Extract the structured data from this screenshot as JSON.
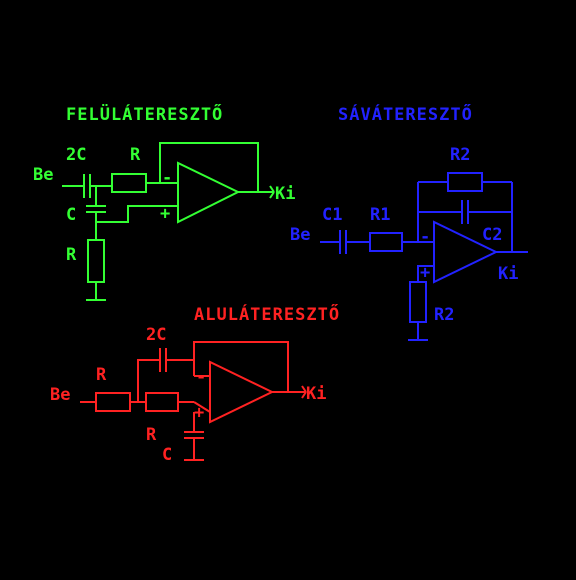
{
  "colors": {
    "background": "#000000",
    "highpass": "#33ff33",
    "bandpass": "#2222ff",
    "lowpass": "#ff2222"
  },
  "highpass": {
    "title": "FELÜLÁTERESZTŐ",
    "input": "Be",
    "output": "Ki",
    "cap1": "2C",
    "res1": "R",
    "cap2": "C",
    "res2": "R",
    "minus": "-",
    "plus": "+"
  },
  "bandpass": {
    "title": "SÁVÁTERESZTŐ",
    "input": "Be",
    "output": "Ki",
    "cap1": "C1",
    "res1": "R1",
    "res_fb": "R2",
    "cap_fb": "C2",
    "res_gnd": "R2",
    "minus": "-",
    "plus": "+"
  },
  "lowpass": {
    "title": "ALULÁTERESZTŐ",
    "input": "Be",
    "output": "Ki",
    "cap_fb": "2C",
    "res1": "R",
    "res2": "R",
    "cap_gnd": "C",
    "minus": "-",
    "plus": "+"
  }
}
